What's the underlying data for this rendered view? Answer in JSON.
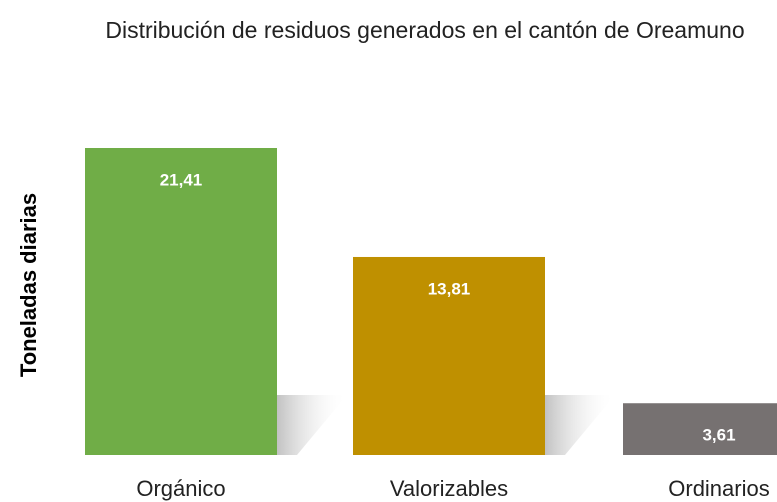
{
  "chart_data": {
    "type": "bar",
    "title": "Distribución de residuos generados en el cantón de Oreamuno",
    "y_label": "Toneladas diarias",
    "categories": [
      "Orgánico",
      "Valorizables",
      "Ordinarios"
    ],
    "values": [
      21.41,
      13.81,
      3.61
    ],
    "value_labels": [
      "21,41",
      "13,81",
      "3,61"
    ],
    "colors": [
      "#70ad47",
      "#bf9000",
      "#767171"
    ]
  }
}
